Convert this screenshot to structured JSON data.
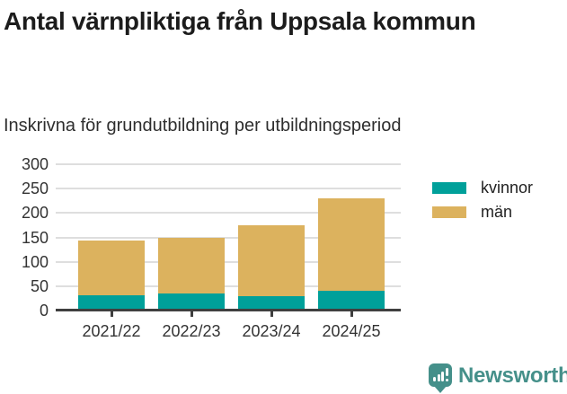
{
  "header": {
    "title": "Antal värnpliktiga från Uppsala kommun",
    "subtitle": "Inskrivna för grundutbildning per utbildningsperiod"
  },
  "chart_data": {
    "type": "bar",
    "stacked": true,
    "title": "Antal värnpliktiga från Uppsala kommun",
    "subtitle": "Inskrivna för grundutbildning per utbildningsperiod",
    "categories": [
      "2021/22",
      "2022/23",
      "2023/24",
      "2024/25"
    ],
    "series": [
      {
        "name": "kvinnor",
        "color": "#00A09A",
        "values": [
          32,
          35,
          29,
          40
        ]
      },
      {
        "name": "män",
        "color": "#DCB25E",
        "values": [
          111,
          114,
          146,
          190
        ]
      }
    ],
    "totals": [
      143,
      149,
      175,
      230
    ],
    "xlabel": "",
    "ylabel": "",
    "ylim": [
      0,
      300
    ],
    "yticks": [
      0,
      50,
      100,
      150,
      200,
      250,
      300
    ],
    "grid": true,
    "legend_position": "right"
  },
  "footer": {
    "brand": "Newsworthy",
    "logo_icon": "bar-chart-speech-bubble-icon",
    "brand_color": "#45908A"
  },
  "colors": {
    "kvinnor": "#00A09A",
    "man": "#DCB25E",
    "axis": "#3f3f3f",
    "gridline": "#dedede",
    "text": "#333333",
    "brand": "#45908A"
  }
}
